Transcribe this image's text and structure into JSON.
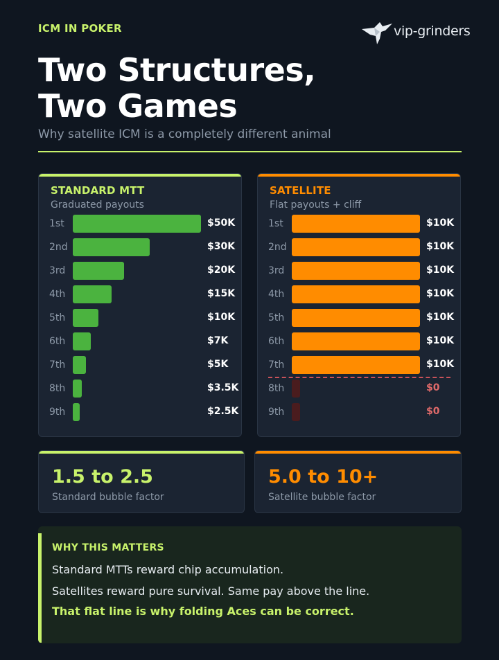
{
  "header": {
    "eyebrow": "ICM IN POKER",
    "logo_text": "vip-grinders",
    "logo_icon": "bird-icon",
    "title_line1": "Two Structures,",
    "title_line2": "Two Games",
    "subtitle": "Why satellite ICM is a completely different animal"
  },
  "colors": {
    "background": "#0f1620",
    "accent_green": "#c8f26b",
    "accent_orange": "#ff8c00",
    "bar_green": "#4bb33f",
    "unpaid_red": "#4a1c1e",
    "zero_text": "#e06a6a"
  },
  "chart_data": [
    {
      "type": "bar",
      "orientation": "horizontal",
      "title": "STANDARD MTT",
      "subtitle": "Graduated payouts",
      "categories": [
        "1st",
        "2nd",
        "3rd",
        "4th",
        "5th",
        "6th",
        "7th",
        "8th",
        "9th"
      ],
      "values": [
        50,
        30,
        20,
        15,
        10,
        7,
        5,
        3.5,
        2.5
      ],
      "value_labels": [
        "$50K",
        "$30K",
        "$20K",
        "$15K",
        "$10K",
        "$7K",
        "$5K",
        "$3.5K",
        "$2.5K"
      ],
      "unit": "$K",
      "xlim": [
        0,
        50
      ],
      "grid": false
    },
    {
      "type": "bar",
      "orientation": "horizontal",
      "title": "SATELLITE",
      "subtitle": "Flat payouts + cliff",
      "categories": [
        "1st",
        "2nd",
        "3rd",
        "4th",
        "5th",
        "6th",
        "7th",
        "8th",
        "9th"
      ],
      "values": [
        10,
        10,
        10,
        10,
        10,
        10,
        10,
        0,
        0
      ],
      "value_labels": [
        "$10K",
        "$10K",
        "$10K",
        "$10K",
        "$10K",
        "$10K",
        "$10K",
        "$0",
        "$0"
      ],
      "unit": "$K",
      "xlim": [
        0,
        10
      ],
      "paid_places": 7,
      "grid": false
    }
  ],
  "stats": {
    "standard_value": "1.5 to 2.5",
    "standard_label": "Standard bubble factor",
    "satellite_value": "5.0 to 10+",
    "satellite_label": "Satellite bubble factor"
  },
  "note": {
    "heading": "WHY THIS MATTERS",
    "line1": "Standard MTTs reward chip accumulation.",
    "line2": "Satellites reward pure survival. Same pay above the line.",
    "line3": "That flat line is why folding Aces can be correct."
  }
}
